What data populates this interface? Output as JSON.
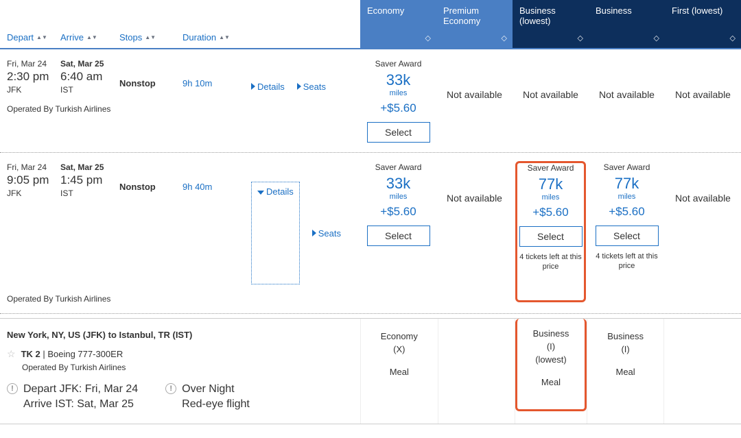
{
  "colors": {
    "link": "#1a6fc4",
    "header_light": "#4a7fc4",
    "header_dark": "#0d2f5c",
    "highlight": "#e4572e"
  },
  "sort_headers": {
    "depart": "Depart",
    "arrive": "Arrive",
    "stops": "Stops",
    "duration": "Duration"
  },
  "cabin_headers": [
    {
      "label": "Economy",
      "style": "light"
    },
    {
      "label": "Premium Economy",
      "style": "light"
    },
    {
      "label": "Business (lowest)",
      "style": "dark"
    },
    {
      "label": "Business",
      "style": "dark"
    },
    {
      "label": "First (lowest)",
      "style": "dark"
    }
  ],
  "not_available": "Not available",
  "saver_award": "Saver Award",
  "miles_label": "miles",
  "select_label": "Select",
  "tickets_left": "4 tickets left at this price",
  "links": {
    "details": "Details",
    "seats": "Seats"
  },
  "flights": [
    {
      "depart_date": "Fri, Mar 24",
      "depart_time": "2:30 pm",
      "depart_airport": "JFK",
      "arrive_date": "Sat, Mar 25",
      "arrive_time": "6:40 am",
      "arrive_airport": "IST",
      "stops": "Nonstop",
      "duration": "9h 10m",
      "operated": "Operated By Turkish Airlines",
      "details_open": false,
      "fares": [
        {
          "type": "award",
          "miles": "33k",
          "fee": "+$5.60"
        },
        {
          "type": "na"
        },
        {
          "type": "na"
        },
        {
          "type": "na"
        },
        {
          "type": "na"
        }
      ]
    },
    {
      "depart_date": "Fri, Mar 24",
      "depart_time": "9:05 pm",
      "depart_airport": "JFK",
      "arrive_date": "Sat, Mar 25",
      "arrive_time": "1:45 pm",
      "arrive_airport": "IST",
      "stops": "Nonstop",
      "duration": "9h 40m",
      "operated": "Operated By Turkish Airlines",
      "details_open": true,
      "fares": [
        {
          "type": "award",
          "miles": "33k",
          "fee": "+$5.60"
        },
        {
          "type": "na"
        },
        {
          "type": "award",
          "miles": "77k",
          "fee": "+$5.60",
          "tickets_left": true,
          "highlight": true
        },
        {
          "type": "award",
          "miles": "77k",
          "fee": "+$5.60",
          "tickets_left": true
        },
        {
          "type": "na"
        }
      ]
    }
  ],
  "details": {
    "route": "New York, NY, US (JFK) to Istanbul, TR (IST)",
    "flight_no": "TK 2",
    "aircraft": "Boeing 777-300ER",
    "operated": "Operated By Turkish Airlines",
    "depart_line": "Depart JFK: Fri, Mar 24",
    "arrive_line": "Arrive IST: Sat, Mar 25",
    "overnight": "Over Night",
    "redeye": "Red-eye flight",
    "cols": [
      {
        "cabin": "Economy",
        "code": "(X)",
        "extra": "",
        "meal": "Meal"
      },
      {
        "cabin": "",
        "code": "",
        "extra": "",
        "meal": ""
      },
      {
        "cabin": "Business",
        "code": "(I)",
        "extra": "(lowest)",
        "meal": "Meal",
        "highlight": true
      },
      {
        "cabin": "Business",
        "code": "(I)",
        "extra": "",
        "meal": "Meal"
      },
      {
        "cabin": "",
        "code": "",
        "extra": "",
        "meal": ""
      }
    ]
  }
}
